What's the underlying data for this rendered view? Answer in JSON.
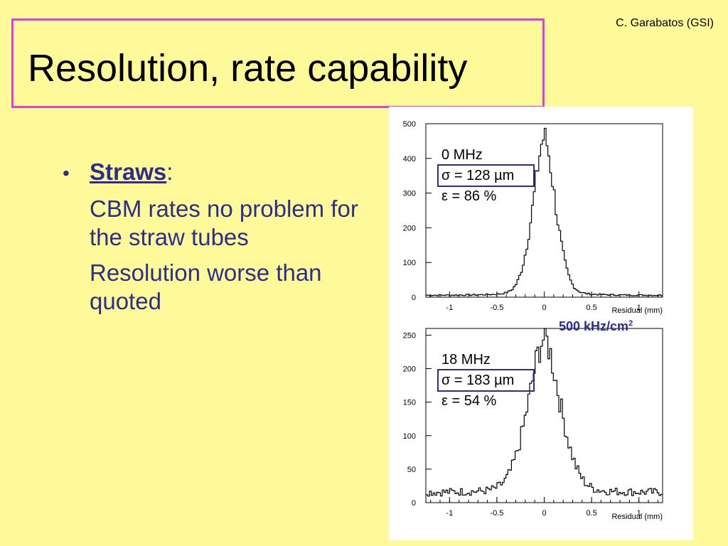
{
  "slide": {
    "title": "Resolution, rate capability",
    "author": "C. Garabatos (GSI)"
  },
  "bullets": {
    "heading": "Straws",
    "colon": ":",
    "para1": "CBM rates no problem for the straw tubes",
    "para2": "Resolution worse than quoted"
  },
  "annotation": {
    "text": "500 kHz/cm",
    "sup": "2"
  },
  "colors": {
    "background": "#FFFA99",
    "title_border": "#E03FE0",
    "text_blue": "#2B2E8C"
  },
  "chart_data": [
    {
      "type": "line",
      "xlabel": "Residual (mm)",
      "xlim": [
        -1.25,
        1.25
      ],
      "ylim": [
        0,
        500
      ],
      "x_ticks": [
        "-1",
        "-0.5",
        "0",
        "0.5",
        "1"
      ],
      "y_ticks": [
        "0",
        "100",
        "200",
        "300",
        "400",
        "500"
      ],
      "annotations": [
        "0 MHz",
        "σ = 128 µm",
        "ε = 86 %"
      ],
      "peak_x": 0.0,
      "sigma": 0.128,
      "peak_y": 460,
      "background": 5
    },
    {
      "type": "line",
      "xlabel": "Residual (mm)",
      "xlim": [
        -1.25,
        1.25
      ],
      "ylim": [
        0,
        260
      ],
      "x_ticks": [
        "-1",
        "-0.5",
        "0",
        "0.5",
        "1"
      ],
      "y_ticks": [
        "0",
        "50",
        "100",
        "150",
        "200",
        "250"
      ],
      "annotations": [
        "18 MHz",
        "σ = 183 µm",
        "ε = 54 %"
      ],
      "peak_x": 0.0,
      "sigma": 0.183,
      "peak_y": 245,
      "background": 15
    }
  ]
}
